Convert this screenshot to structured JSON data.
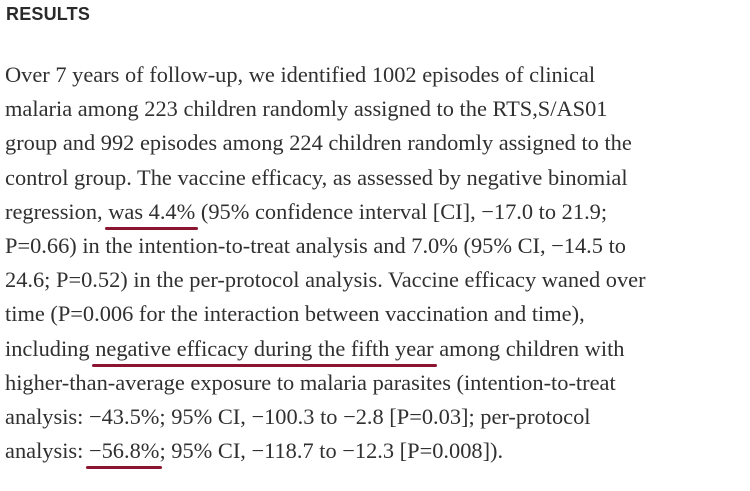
{
  "section": {
    "heading": "RESULTS"
  },
  "paragraph": {
    "line1": "Over 7 years of follow-up, we identified 1002 episodes of clinical",
    "line2": "malaria among 223 children randomly assigned to the RTS,S/AS01",
    "line3": "group and 992 episodes among 224 children randomly assigned to the",
    "line4": "control group. The vaccine efficacy, as assessed by negative binomial",
    "line5_pre": "regression, ",
    "line5_hl": "was 4.4%",
    "line5_post": " (95% confidence interval [CI], −17.0 to 21.9;",
    "line6": "P=0.66) in the intention-to-treat analysis and 7.0% (95% CI, −14.5 to",
    "line7": "24.6; P=0.52) in the per-protocol analysis. Vaccine efficacy waned over",
    "line8": "time (P=0.006 for the interaction between vaccination and time),",
    "line9_pre": "including ",
    "line9_hl": "negative efficacy during the fifth year",
    "line9_post": " among children with",
    "line10": "higher-than-average exposure to malaria parasites (intention-to-treat",
    "line11": "analysis: −43.5%; 95% CI, −100.3 to −2.8 [P=0.03]; per-protocol",
    "line12_pre": "analysis: ",
    "line12_hl": "−56.8%",
    "line12_post": "; 95% CI, −118.7 to −12.3 [P=0.008])."
  },
  "colors": {
    "underline": "#8b1530",
    "text": "#303030"
  }
}
